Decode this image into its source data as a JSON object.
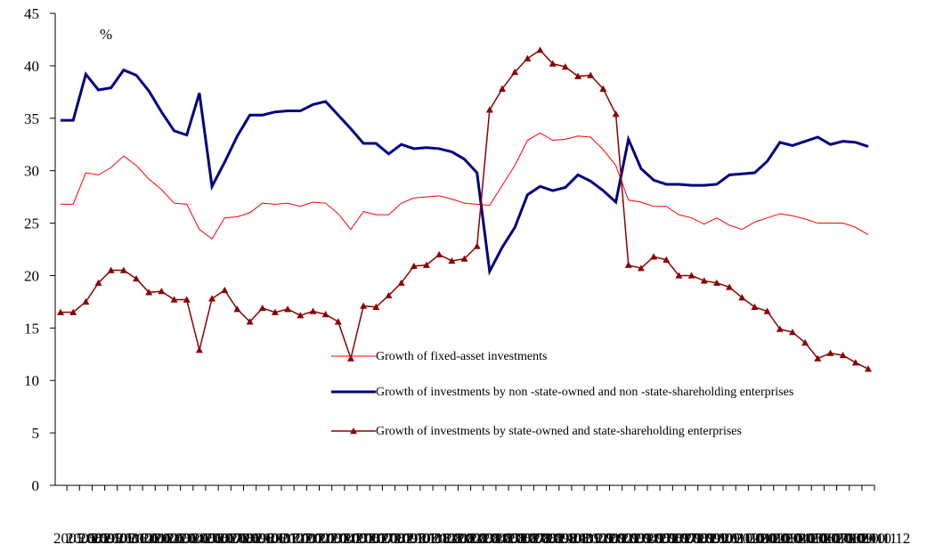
{
  "chart_data": {
    "type": "line",
    "annotation": "%",
    "categories": [
      "2005.08",
      "2005.09",
      "2005.10",
      "2005.11",
      "2005.12",
      "2006.01",
      "2006.02",
      "2006.03",
      "2006.04",
      "2006.05",
      "2006.06",
      "2006.07",
      "2006.08",
      "2006.09",
      "2006.10",
      "2006.11",
      "2006.12",
      "2007.01",
      "2007.02",
      "2007.03",
      "2007.04",
      "2007.05",
      "2007.06",
      "2007.07",
      "2007.08",
      "2007.09",
      "2007.10",
      "2007.11",
      "2007.12",
      "2008.01",
      "2008.02",
      "2008.03",
      "2008.04",
      "2008.05",
      "2008.06",
      "2008.07",
      "2008.08",
      "2008.09",
      "2008.10",
      "2008.11",
      "2008.12",
      "2009.01",
      "2009.02",
      "2009.03",
      "2009.04",
      "2009.05",
      "2009.06",
      "2009.07",
      "2009.08",
      "2009.09",
      "2009.10",
      "2009.11",
      "2009.12",
      "2010.01",
      "2010.02",
      "2010.03",
      "2010.04",
      "2010.05",
      "2010.06",
      "2010.07",
      "2010.08",
      "2010.09",
      "2010.10",
      "2010.11",
      "2010.12"
    ],
    "series": [
      {
        "name": "Growth of fixed-asset investments",
        "color": "#ff0000",
        "marker": "none",
        "width": 1,
        "values": [
          26.8,
          26.8,
          29.8,
          29.6,
          30.3,
          31.4,
          30.5,
          29.2,
          28.2,
          26.9,
          26.8,
          24.4,
          23.5,
          25.5,
          25.6,
          26.0,
          26.9,
          26.8,
          26.9,
          26.6,
          27.0,
          26.9,
          25.9,
          24.4,
          26.1,
          25.8,
          25.8,
          26.9,
          27.4,
          27.5,
          27.6,
          27.3,
          26.9,
          26.8,
          26.7,
          28.6,
          30.5,
          32.9,
          33.6,
          32.9,
          33.0,
          33.3,
          33.2,
          32.0,
          30.5,
          27.2,
          27.0,
          26.6,
          26.6,
          25.8,
          25.5,
          24.9,
          25.5,
          24.8,
          24.4,
          25.1,
          25.5,
          25.9,
          25.7,
          25.4,
          25.0,
          25.0,
          25.0,
          24.6,
          23.9
        ]
      },
      {
        "name": "Growth of investments by non -state-owned and non -state-shareholding enterprises",
        "color": "#000080",
        "marker": "none",
        "width": 3,
        "values": [
          34.8,
          34.8,
          39.2,
          37.7,
          37.9,
          39.6,
          39.1,
          37.6,
          35.6,
          33.8,
          33.4,
          37.4,
          28.5,
          30.8,
          33.3,
          35.3,
          35.3,
          35.6,
          35.7,
          35.7,
          36.3,
          36.6,
          35.3,
          34.0,
          32.6,
          32.6,
          31.6,
          32.5,
          32.1,
          32.2,
          32.1,
          31.8,
          31.1,
          29.8,
          20.4,
          22.7,
          24.6,
          27.7,
          28.5,
          28.1,
          28.4,
          29.6,
          29.0,
          28.1,
          27.0,
          33.0,
          30.2,
          29.1,
          28.7,
          28.7,
          28.6,
          28.6,
          28.7,
          29.6,
          29.7,
          29.8,
          30.9,
          32.7,
          32.4,
          32.8,
          33.2,
          32.5,
          32.8,
          32.7,
          32.3
        ]
      },
      {
        "name": "Growth of investments by state-owned and state-shareholding enterprises",
        "color": "#8b0000",
        "marker": "triangle",
        "width": 1.5,
        "values": [
          16.5,
          16.5,
          17.5,
          19.3,
          20.5,
          20.5,
          19.7,
          18.4,
          18.5,
          17.7,
          17.7,
          12.9,
          17.8,
          18.6,
          16.8,
          15.6,
          16.9,
          16.5,
          16.8,
          16.2,
          16.6,
          16.3,
          15.6,
          12.1,
          17.1,
          17.0,
          18.1,
          19.3,
          20.9,
          21.0,
          22.0,
          21.4,
          21.6,
          22.8,
          35.8,
          37.8,
          39.4,
          40.7,
          41.5,
          40.2,
          39.9,
          39.0,
          39.1,
          37.8,
          35.4,
          21.0,
          20.7,
          21.8,
          21.5,
          20.0,
          20.0,
          19.5,
          19.3,
          18.9,
          17.9,
          17.0,
          16.6,
          14.9,
          14.6,
          13.6,
          12.1,
          12.6,
          12.4,
          11.7,
          11.1
        ]
      }
    ],
    "ylim": [
      0,
      45
    ],
    "yticks": [
      0,
      5,
      10,
      15,
      20,
      25,
      30,
      35,
      40,
      45
    ],
    "grid": false
  }
}
